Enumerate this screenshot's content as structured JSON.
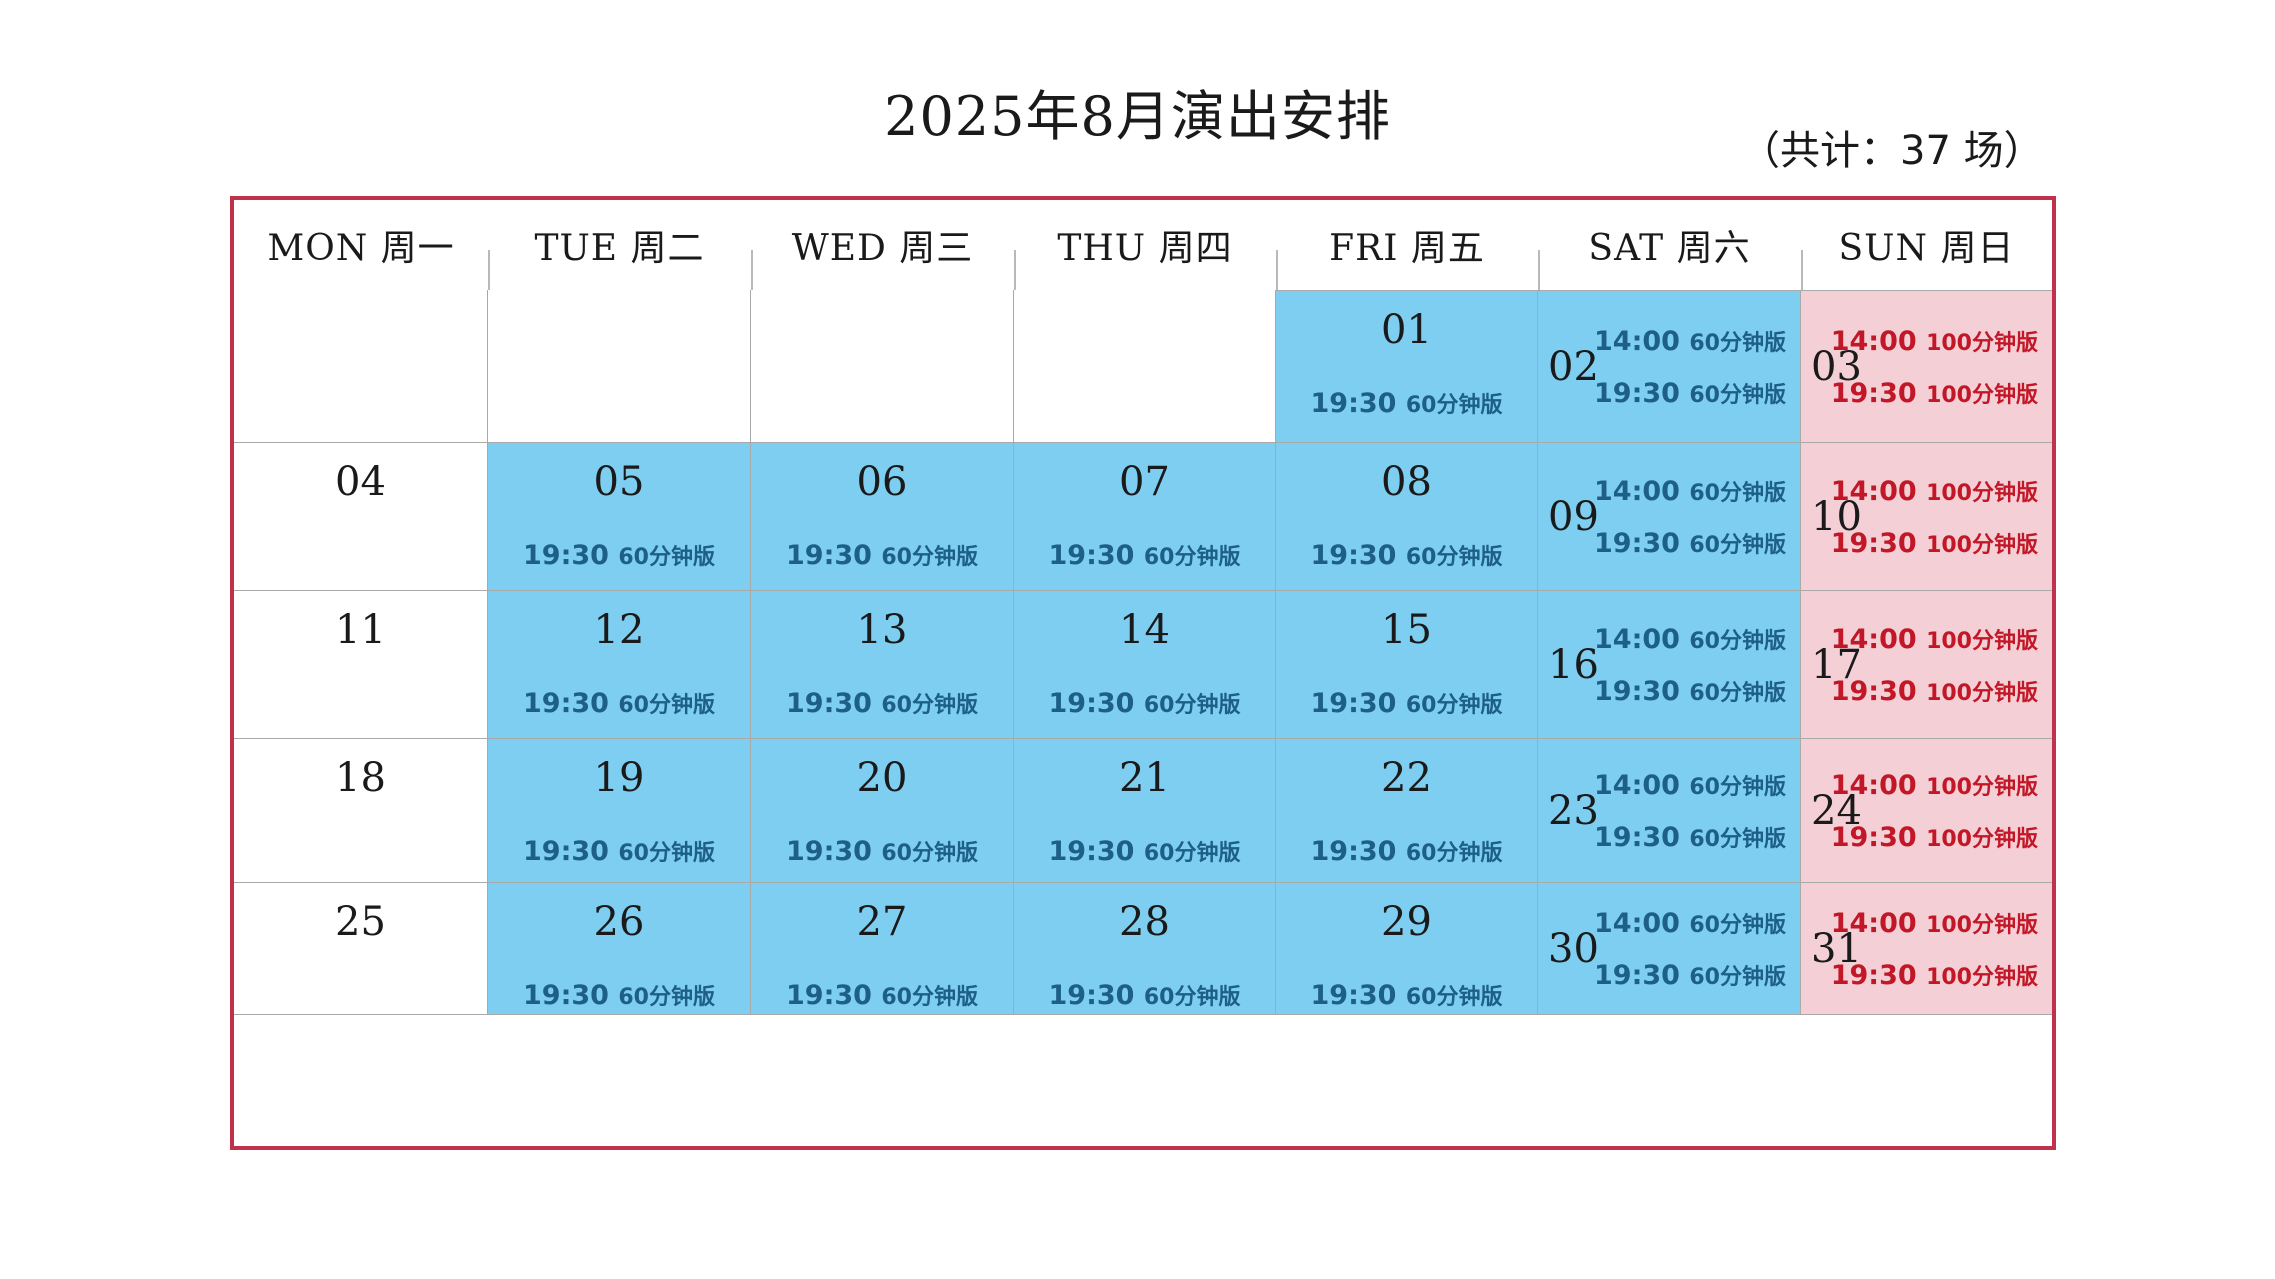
{
  "title": "2025年8月演出安排",
  "total": "（共计：37 场）",
  "weekdays": [
    "MON 周一",
    "TUE 周二",
    "WED 周三",
    "THU 周四",
    "FRI 周五",
    "SAT 周六",
    "SUN 周日"
  ],
  "colors": {
    "frame": "#c0314b",
    "weekday_cell": "#7ecef1",
    "sunday_cell": "#f4cfd6",
    "weekday_text": "#1d5f86",
    "sunday_text": "#c21727"
  },
  "weeks": [
    [
      {
        "type": "empty"
      },
      {
        "type": "empty"
      },
      {
        "type": "empty"
      },
      {
        "type": "empty"
      },
      {
        "type": "weekday",
        "day": "01",
        "shows": [
          {
            "time": "19:30",
            "version": "60分钟版"
          }
        ]
      },
      {
        "type": "sat",
        "day": "02",
        "shows": [
          {
            "time": "14:00",
            "version": "60分钟版"
          },
          {
            "time": "19:30",
            "version": "60分钟版"
          }
        ]
      },
      {
        "type": "sun",
        "day": "03",
        "shows": [
          {
            "time": "14:00",
            "version": "100分钟版"
          },
          {
            "time": "19:30",
            "version": "100分钟版"
          }
        ]
      }
    ],
    [
      {
        "type": "off",
        "day": "04"
      },
      {
        "type": "weekday",
        "day": "05",
        "shows": [
          {
            "time": "19:30",
            "version": "60分钟版"
          }
        ]
      },
      {
        "type": "weekday",
        "day": "06",
        "shows": [
          {
            "time": "19:30",
            "version": "60分钟版"
          }
        ]
      },
      {
        "type": "weekday",
        "day": "07",
        "shows": [
          {
            "time": "19:30",
            "version": "60分钟版"
          }
        ]
      },
      {
        "type": "weekday",
        "day": "08",
        "shows": [
          {
            "time": "19:30",
            "version": "60分钟版"
          }
        ]
      },
      {
        "type": "sat",
        "day": "09",
        "shows": [
          {
            "time": "14:00",
            "version": "60分钟版"
          },
          {
            "time": "19:30",
            "version": "60分钟版"
          }
        ]
      },
      {
        "type": "sun",
        "day": "10",
        "shows": [
          {
            "time": "14:00",
            "version": "100分钟版"
          },
          {
            "time": "19:30",
            "version": "100分钟版"
          }
        ]
      }
    ],
    [
      {
        "type": "off",
        "day": "11"
      },
      {
        "type": "weekday",
        "day": "12",
        "shows": [
          {
            "time": "19:30",
            "version": "60分钟版"
          }
        ]
      },
      {
        "type": "weekday",
        "day": "13",
        "shows": [
          {
            "time": "19:30",
            "version": "60分钟版"
          }
        ]
      },
      {
        "type": "weekday",
        "day": "14",
        "shows": [
          {
            "time": "19:30",
            "version": "60分钟版"
          }
        ]
      },
      {
        "type": "weekday",
        "day": "15",
        "shows": [
          {
            "time": "19:30",
            "version": "60分钟版"
          }
        ]
      },
      {
        "type": "sat",
        "day": "16",
        "shows": [
          {
            "time": "14:00",
            "version": "60分钟版"
          },
          {
            "time": "19:30",
            "version": "60分钟版"
          }
        ]
      },
      {
        "type": "sun",
        "day": "17",
        "shows": [
          {
            "time": "14:00",
            "version": "100分钟版"
          },
          {
            "time": "19:30",
            "version": "100分钟版"
          }
        ]
      }
    ],
    [
      {
        "type": "off",
        "day": "18"
      },
      {
        "type": "weekday",
        "day": "19",
        "shows": [
          {
            "time": "19:30",
            "version": "60分钟版"
          }
        ]
      },
      {
        "type": "weekday",
        "day": "20",
        "shows": [
          {
            "time": "19:30",
            "version": "60分钟版"
          }
        ]
      },
      {
        "type": "weekday",
        "day": "21",
        "shows": [
          {
            "time": "19:30",
            "version": "60分钟版"
          }
        ]
      },
      {
        "type": "weekday",
        "day": "22",
        "shows": [
          {
            "time": "19:30",
            "version": "60分钟版"
          }
        ]
      },
      {
        "type": "sat",
        "day": "23",
        "shows": [
          {
            "time": "14:00",
            "version": "60分钟版"
          },
          {
            "time": "19:30",
            "version": "60分钟版"
          }
        ]
      },
      {
        "type": "sun",
        "day": "24",
        "shows": [
          {
            "time": "14:00",
            "version": "100分钟版"
          },
          {
            "time": "19:30",
            "version": "100分钟版"
          }
        ]
      }
    ],
    [
      {
        "type": "off",
        "day": "25"
      },
      {
        "type": "weekday",
        "day": "26",
        "shows": [
          {
            "time": "19:30",
            "version": "60分钟版"
          }
        ]
      },
      {
        "type": "weekday",
        "day": "27",
        "shows": [
          {
            "time": "19:30",
            "version": "60分钟版"
          }
        ]
      },
      {
        "type": "weekday",
        "day": "28",
        "shows": [
          {
            "time": "19:30",
            "version": "60分钟版"
          }
        ]
      },
      {
        "type": "weekday",
        "day": "29",
        "shows": [
          {
            "time": "19:30",
            "version": "60分钟版"
          }
        ]
      },
      {
        "type": "sat",
        "day": "30",
        "shows": [
          {
            "time": "14:00",
            "version": "60分钟版"
          },
          {
            "time": "19:30",
            "version": "60分钟版"
          }
        ]
      },
      {
        "type": "sun",
        "day": "31",
        "shows": [
          {
            "time": "14:00",
            "version": "100分钟版"
          },
          {
            "time": "19:30",
            "version": "100分钟版"
          }
        ]
      }
    ]
  ]
}
